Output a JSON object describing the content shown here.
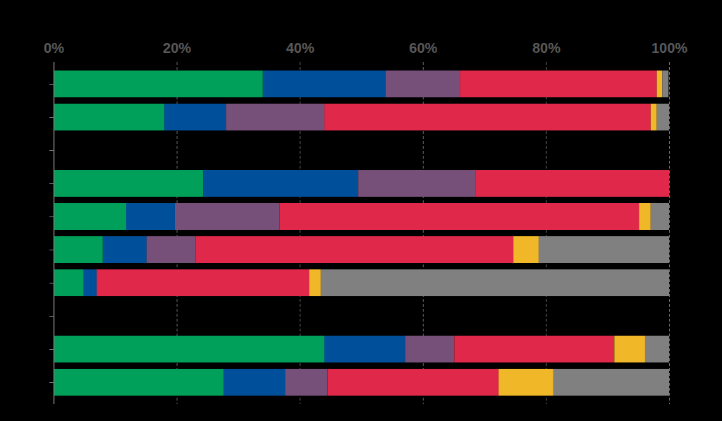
{
  "chart_data": {
    "type": "bar",
    "orientation": "horizontal",
    "stacked": true,
    "grid": true,
    "tick_labels": "x",
    "categories": [
      null,
      null,
      null,
      null,
      null,
      null,
      null,
      null,
      null,
      null
    ],
    "xlim": [
      0,
      100
    ],
    "xticks": [
      {
        "value": 0,
        "label": "0%"
      },
      {
        "value": 20,
        "label": "20%"
      },
      {
        "value": 40,
        "label": "40%"
      },
      {
        "value": 60,
        "label": "60%"
      },
      {
        "value": 80,
        "label": "80%"
      },
      {
        "value": 100,
        "label": "100%"
      }
    ],
    "series": [
      {
        "color": "#00a05a",
        "values": [
          34.0,
          18.0,
          null,
          24.3,
          11.8,
          8.0,
          4.9,
          null,
          44.0,
          27.6
        ]
      },
      {
        "color": "#004f9a",
        "values": [
          19.9,
          10.0,
          null,
          25.2,
          7.9,
          7.1,
          2.1,
          null,
          13.1,
          10.0
        ]
      },
      {
        "color": "#77507a",
        "values": [
          12.1,
          16.0,
          null,
          19.1,
          17.0,
          8.0,
          0,
          null,
          8.0,
          6.9
        ]
      },
      {
        "color": "#e0284a",
        "values": [
          32.0,
          53.0,
          null,
          31.4,
          58.4,
          51.6,
          34.5,
          null,
          26.0,
          27.8
        ]
      },
      {
        "color": "#f0b828",
        "values": [
          0.9,
          1.0,
          null,
          0,
          1.9,
          4.1,
          1.9,
          null,
          5.0,
          8.9
        ]
      },
      {
        "color": "#808080",
        "values": [
          1.0,
          2.0,
          null,
          0,
          3.0,
          21.2,
          56.6,
          null,
          3.9,
          18.8
        ]
      }
    ]
  }
}
